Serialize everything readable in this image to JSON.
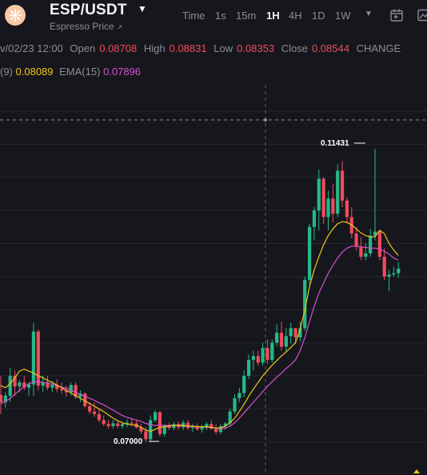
{
  "header": {
    "symbol": "ESP/USDT",
    "subtitle": "Espresso Price",
    "logo_icon": "espresso-coin-logo",
    "timeframes": [
      "Time",
      "1s",
      "15m",
      "1H",
      "4H",
      "1D",
      "1W"
    ],
    "active_timeframe": "1H",
    "tool_icons": [
      "calendar-icon",
      "chart-icon"
    ]
  },
  "ohlc": {
    "date": "v/02/23 12:00",
    "open_label": "Open",
    "open": "0.08708",
    "high_label": "High",
    "high": "0.08831",
    "low_label": "Low",
    "low": "0.08353",
    "close_label": "Close",
    "close": "0.08544",
    "change_label": "CHANGE"
  },
  "indicators": {
    "ema1_label": "(9)",
    "ema1_value": "0.08089",
    "ema2_label": "EMA(15)",
    "ema2_value": "0.07896"
  },
  "colors": {
    "up": "#26b889",
    "down": "#f04b5c",
    "ema9": "#f0c419",
    "ema15": "#d44fd0",
    "background": "#16171c",
    "grid": "#26282e"
  },
  "chart_data": {
    "type": "candlestick",
    "max_marker": "0.11431",
    "min_marker": "0.07000",
    "ylim": [
      0.065,
      0.124
    ],
    "candles": [
      [
        0.0771,
        0.08,
        0.0742,
        0.076
      ],
      [
        0.076,
        0.0775,
        0.0752,
        0.077
      ],
      [
        0.077,
        0.0812,
        0.076,
        0.08
      ],
      [
        0.08,
        0.0808,
        0.077,
        0.0784
      ],
      [
        0.0784,
        0.0794,
        0.0775,
        0.079
      ],
      [
        0.079,
        0.08,
        0.0778,
        0.0782
      ],
      [
        0.0782,
        0.079,
        0.077,
        0.0787
      ],
      [
        0.0787,
        0.088,
        0.077,
        0.0867
      ],
      [
        0.0867,
        0.087,
        0.0778,
        0.0785
      ],
      [
        0.0785,
        0.08,
        0.0775,
        0.079
      ],
      [
        0.079,
        0.08,
        0.0778,
        0.0782
      ],
      [
        0.0782,
        0.0792,
        0.0775,
        0.0786
      ],
      [
        0.0786,
        0.0795,
        0.0775,
        0.078
      ],
      [
        0.078,
        0.079,
        0.0773,
        0.0778
      ],
      [
        0.0778,
        0.0785,
        0.0768,
        0.0775
      ],
      [
        0.0775,
        0.079,
        0.077,
        0.0786
      ],
      [
        0.0786,
        0.079,
        0.0765,
        0.0768
      ],
      [
        0.0768,
        0.0778,
        0.076,
        0.0773
      ],
      [
        0.0773,
        0.0775,
        0.0752,
        0.0754
      ],
      [
        0.0754,
        0.076,
        0.0742,
        0.0746
      ],
      [
        0.0746,
        0.076,
        0.0738,
        0.0742
      ],
      [
        0.0742,
        0.075,
        0.073,
        0.0733
      ],
      [
        0.0733,
        0.074,
        0.0724,
        0.0727
      ],
      [
        0.0727,
        0.0733,
        0.072,
        0.0724
      ],
      [
        0.0724,
        0.0733,
        0.072,
        0.0728
      ],
      [
        0.0728,
        0.0731,
        0.0721,
        0.0724
      ],
      [
        0.0724,
        0.073,
        0.072,
        0.0727
      ],
      [
        0.0727,
        0.0734,
        0.0722,
        0.0729
      ],
      [
        0.0729,
        0.0736,
        0.0724,
        0.0728
      ],
      [
        0.0728,
        0.0733,
        0.072,
        0.0722
      ],
      [
        0.0722,
        0.0727,
        0.0712,
        0.0716
      ],
      [
        0.0716,
        0.0722,
        0.07,
        0.0704
      ],
      [
        0.0704,
        0.074,
        0.07,
        0.0733
      ],
      [
        0.0733,
        0.0748,
        0.073,
        0.0745
      ],
      [
        0.0745,
        0.0747,
        0.0708,
        0.0712
      ],
      [
        0.0712,
        0.0727,
        0.0708,
        0.0724
      ],
      [
        0.0724,
        0.0729,
        0.0718,
        0.0721
      ],
      [
        0.0721,
        0.073,
        0.0718,
        0.0727
      ],
      [
        0.0727,
        0.0731,
        0.0718,
        0.0722
      ],
      [
        0.0722,
        0.0733,
        0.0718,
        0.0729
      ],
      [
        0.0729,
        0.0733,
        0.0718,
        0.0721
      ],
      [
        0.0721,
        0.0727,
        0.0715,
        0.0724
      ],
      [
        0.0724,
        0.0728,
        0.0717,
        0.0719
      ],
      [
        0.0719,
        0.0726,
        0.0714,
        0.0722
      ],
      [
        0.0722,
        0.073,
        0.0718,
        0.0727
      ],
      [
        0.0727,
        0.0733,
        0.0718,
        0.072
      ],
      [
        0.072,
        0.0727,
        0.0712,
        0.0715
      ],
      [
        0.0715,
        0.0727,
        0.0712,
        0.0724
      ],
      [
        0.0724,
        0.073,
        0.0718,
        0.0728
      ],
      [
        0.0728,
        0.075,
        0.0724,
        0.0746
      ],
      [
        0.0746,
        0.0772,
        0.0742,
        0.0766
      ],
      [
        0.0766,
        0.0782,
        0.076,
        0.0774
      ],
      [
        0.0774,
        0.0808,
        0.0768,
        0.08
      ],
      [
        0.08,
        0.0832,
        0.0795,
        0.0824
      ],
      [
        0.0824,
        0.0838,
        0.0808,
        0.083
      ],
      [
        0.083,
        0.0838,
        0.0815,
        0.082
      ],
      [
        0.082,
        0.085,
        0.0815,
        0.0842
      ],
      [
        0.0842,
        0.0855,
        0.0818,
        0.0824
      ],
      [
        0.0824,
        0.0855,
        0.082,
        0.085
      ],
      [
        0.085,
        0.0878,
        0.0845,
        0.0865
      ],
      [
        0.0865,
        0.0882,
        0.0838,
        0.0844
      ],
      [
        0.0844,
        0.0872,
        0.0836,
        0.086
      ],
      [
        0.086,
        0.088,
        0.0848,
        0.0872
      ],
      [
        0.0872,
        0.0872,
        0.0848,
        0.0858
      ],
      [
        0.0858,
        0.0882,
        0.0852,
        0.0872
      ],
      [
        0.0872,
        0.095,
        0.0868,
        0.0945
      ],
      [
        0.0945,
        0.103,
        0.0938,
        0.1025
      ],
      [
        0.1025,
        0.1055,
        0.1005,
        0.105
      ],
      [
        0.105,
        0.1112,
        0.102,
        0.1098
      ],
      [
        0.1098,
        0.11,
        0.103,
        0.104
      ],
      [
        0.104,
        0.108,
        0.102,
        0.1068
      ],
      [
        0.1068,
        0.109,
        0.1032,
        0.1045
      ],
      [
        0.1045,
        0.112,
        0.104,
        0.111
      ],
      [
        0.111,
        0.1125,
        0.1055,
        0.1065
      ],
      [
        0.1065,
        0.107,
        0.103,
        0.104
      ],
      [
        0.104,
        0.1055,
        0.1008,
        0.1015
      ],
      [
        0.1015,
        0.1025,
        0.099,
        0.0995
      ],
      [
        0.0995,
        0.101,
        0.0975,
        0.098
      ],
      [
        0.098,
        0.1,
        0.0975,
        0.0985
      ],
      [
        0.0985,
        0.1022,
        0.098,
        0.1012
      ],
      [
        0.1012,
        0.1143,
        0.1005,
        0.1018
      ],
      [
        0.1018,
        0.102,
        0.0975,
        0.098
      ],
      [
        0.098,
        0.0993,
        0.0945,
        0.095
      ],
      [
        0.095,
        0.096,
        0.0928,
        0.0953
      ],
      [
        0.0953,
        0.0965,
        0.095,
        0.0955
      ],
      [
        0.0955,
        0.0972,
        0.0948,
        0.0962
      ]
    ],
    "ema9": [
      0.0785,
      0.0782,
      0.0788,
      0.0797,
      0.0807,
      0.081,
      0.0807,
      0.0804,
      0.08,
      0.0797,
      0.0793,
      0.079,
      0.0786,
      0.0782,
      0.0778,
      0.0774,
      0.077,
      0.0766,
      0.0762,
      0.0758,
      0.0754,
      0.075,
      0.0746,
      0.0741,
      0.0736,
      0.0732,
      0.0729,
      0.0727,
      0.0726,
      0.0725,
      0.0722,
      0.0718,
      0.0716,
      0.0719,
      0.0722,
      0.0723,
      0.0724,
      0.0725,
      0.0725,
      0.0725,
      0.0724,
      0.0724,
      0.0723,
      0.0723,
      0.0723,
      0.0722,
      0.0721,
      0.0721,
      0.0724,
      0.0729,
      0.0736,
      0.0746,
      0.0757,
      0.0769,
      0.078,
      0.079,
      0.08,
      0.0808,
      0.0816,
      0.0823,
      0.083,
      0.0836,
      0.0843,
      0.085,
      0.087,
      0.09,
      0.0935,
      0.096,
      0.098,
      0.0998,
      0.1012,
      0.1022,
      0.103,
      0.1033,
      0.1032,
      0.1028,
      0.1022,
      0.1016,
      0.1012,
      0.101,
      0.101,
      0.102,
      0.1015,
      0.1,
      0.099,
      0.0982
    ],
    "ema15": [
      0.0758,
      0.0761,
      0.0766,
      0.0772,
      0.0778,
      0.0784,
      0.0788,
      0.0791,
      0.0791,
      0.079,
      0.0789,
      0.0787,
      0.0785,
      0.0783,
      0.0781,
      0.0778,
      0.0775,
      0.0772,
      0.0769,
      0.0766,
      0.0763,
      0.0759,
      0.0756,
      0.0752,
      0.0748,
      0.0744,
      0.074,
      0.0737,
      0.0735,
      0.0733,
      0.0731,
      0.0728,
      0.0726,
      0.0725,
      0.0725,
      0.0725,
      0.0725,
      0.0725,
      0.0725,
      0.0724,
      0.0724,
      0.0723,
      0.0723,
      0.0723,
      0.0722,
      0.0722,
      0.0721,
      0.072,
      0.0721,
      0.0724,
      0.0729,
      0.0736,
      0.0744,
      0.0752,
      0.076,
      0.0768,
      0.0776,
      0.0784,
      0.0791,
      0.0798,
      0.0804,
      0.0811,
      0.0817,
      0.0824,
      0.0838,
      0.0858,
      0.0882,
      0.0905,
      0.0925,
      0.094,
      0.0955,
      0.0967,
      0.0978,
      0.0987,
      0.0993,
      0.0996,
      0.0996,
      0.0995,
      0.0994,
      0.0993,
      0.0993,
      0.0992,
      0.0988,
      0.0984,
      0.0978,
      0.0975
    ]
  }
}
